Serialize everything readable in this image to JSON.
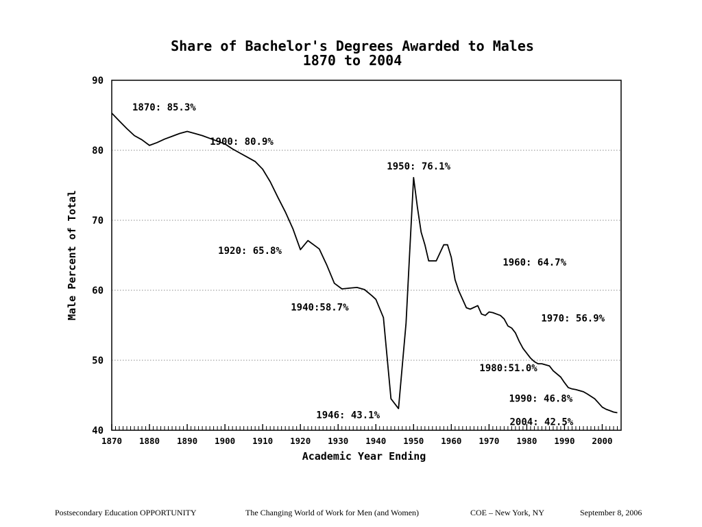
{
  "chart_data": {
    "type": "line",
    "title": "Share of Bachelor's Degrees Awarded to Males",
    "subtitle": "1870 to 2004",
    "xlabel": "Academic Year Ending",
    "ylabel": "Male Percent of Total",
    "xlim": [
      1870,
      2005
    ],
    "ylim": [
      40,
      90
    ],
    "x_ticks": [
      1870,
      1880,
      1890,
      1900,
      1910,
      1920,
      1930,
      1940,
      1950,
      1960,
      1970,
      1980,
      1990,
      2000
    ],
    "y_ticks": [
      40,
      50,
      60,
      70,
      80,
      90
    ],
    "grid": "horizontal dotted",
    "series": [
      {
        "x": [
          1870,
          1872,
          1874,
          1876,
          1878,
          1880,
          1882,
          1884,
          1886,
          1888,
          1890,
          1892,
          1894,
          1896,
          1898,
          1900,
          1902,
          1904,
          1906,
          1908,
          1910,
          1912,
          1914,
          1916,
          1918,
          1920,
          1922,
          1924,
          1925,
          1927,
          1929,
          1931,
          1933,
          1935,
          1937,
          1939,
          1940,
          1942,
          1944,
          1946,
          1948,
          1949,
          1950,
          1951,
          1952,
          1953,
          1954,
          1956,
          1958,
          1959,
          1960,
          1961,
          1962,
          1964,
          1965,
          1967,
          1968,
          1969,
          1970,
          1971,
          1972,
          1973,
          1974,
          1975,
          1976,
          1977,
          1978,
          1979,
          1980,
          1981,
          1982,
          1983,
          1984,
          1986,
          1987,
          1989,
          1990,
          1991,
          1992,
          1993,
          1995,
          1996,
          1998,
          1999,
          2000,
          2001,
          2002,
          2003,
          2004
        ],
        "values": [
          85.3,
          84.2,
          83.1,
          82.1,
          81.5,
          80.7,
          81.1,
          81.6,
          82,
          82.4,
          82.7,
          82.4,
          82.1,
          81.7,
          81.3,
          80.9,
          80.2,
          79.6,
          79,
          78.4,
          77.3,
          75.5,
          73.3,
          71.2,
          68.8,
          65.8,
          67.1,
          66.3,
          65.9,
          63.6,
          61,
          60.2,
          60.3,
          60.4,
          60.1,
          59.2,
          58.7,
          56.1,
          44.5,
          43.1,
          55.3,
          65.8,
          76.1,
          71.9,
          68.3,
          66.5,
          64.2,
          64.2,
          66.5,
          66.5,
          64.7,
          61.5,
          59.9,
          57.5,
          57.3,
          57.8,
          56.6,
          56.4,
          56.9,
          56.8,
          56.6,
          56.4,
          55.9,
          54.9,
          54.6,
          53.9,
          52.7,
          51.7,
          51,
          50.3,
          49.8,
          49.5,
          49.5,
          49.2,
          48.5,
          47.6,
          46.8,
          46.1,
          45.9,
          45.8,
          45.5,
          45.2,
          44.5,
          43.9,
          43.3,
          43,
          42.8,
          42.6,
          42.5
        ]
      }
    ],
    "annotations": [
      {
        "text": "1870: 85.3%",
        "x": 1870,
        "y": 85.3
      },
      {
        "text": "1900: 80.9%",
        "x": 1900,
        "y": 80.9
      },
      {
        "text": "1950: 76.1%",
        "x": 1950,
        "y": 76.1
      },
      {
        "text": "1920: 65.8%",
        "x": 1920,
        "y": 65.8
      },
      {
        "text": "1960: 64.7%",
        "x": 1960,
        "y": 64.7
      },
      {
        "text": "1940:58.7%",
        "x": 1940,
        "y": 58.7
      },
      {
        "text": "1970: 56.9%",
        "x": 1970,
        "y": 56.9
      },
      {
        "text": "1980:51.0%",
        "x": 1980,
        "y": 51.0
      },
      {
        "text": "1990: 46.8%",
        "x": 1990,
        "y": 46.8
      },
      {
        "text": "1946: 43.1%",
        "x": 1946,
        "y": 43.1
      },
      {
        "text": "2004: 42.5%",
        "x": 2004,
        "y": 42.5
      }
    ],
    "colors": {
      "line": "#000000",
      "grid": "#8a8a8a",
      "frame": "#000000"
    }
  },
  "footer": {
    "left": "Postsecondary Education OPPORTUNITY",
    "center": "The Changing World of Work for Men (and Women)",
    "location": "COE – New York, NY",
    "date": "September 8, 2006"
  }
}
